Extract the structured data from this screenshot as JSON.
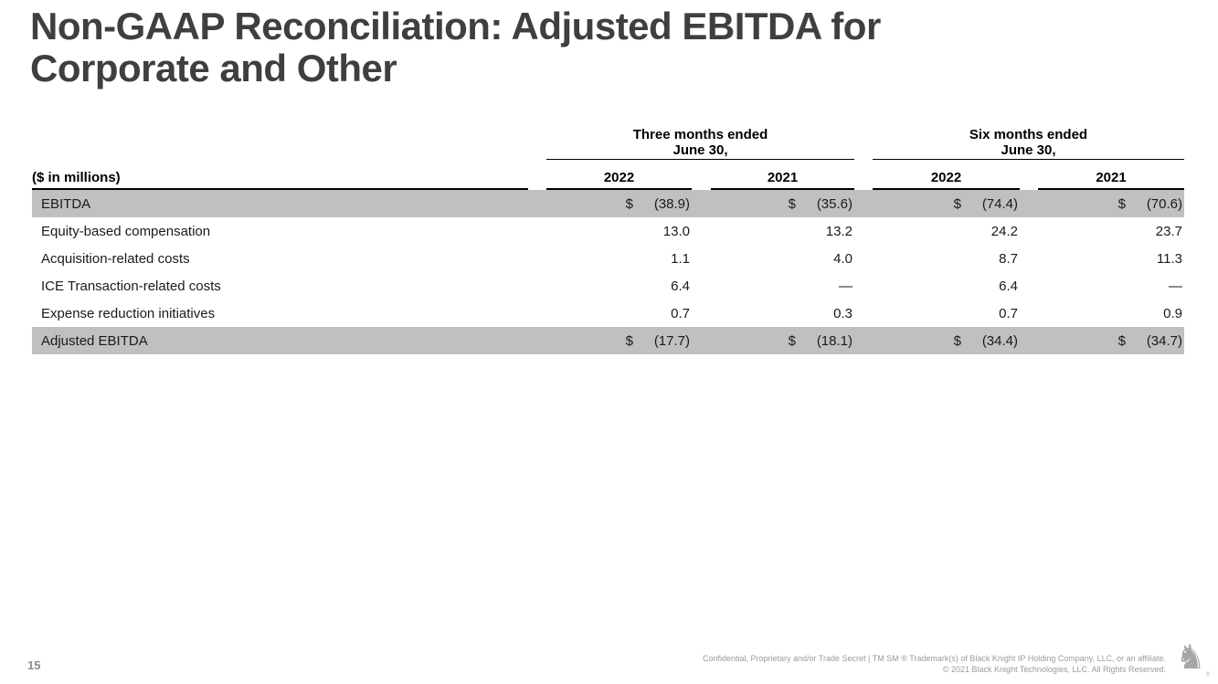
{
  "slide": {
    "title_line1": "Non-GAAP Reconciliation: Adjusted EBITDA for",
    "title_line2": "Corporate and Other",
    "page_number": "15"
  },
  "table": {
    "units_label": "($ in millions)",
    "currency_symbol": "$",
    "column_groups": [
      {
        "line1": "Three months ended",
        "line2": "June 30,"
      },
      {
        "line1": "Six months ended",
        "line2": "June 30,"
      }
    ],
    "year_headers": [
      "2022",
      "2021",
      "2022",
      "2021"
    ],
    "rows": [
      {
        "label": "EBITDA",
        "shaded": true,
        "currency": true,
        "values": [
          "(38.9)",
          "(35.6)",
          "(74.4)",
          "(70.6)"
        ]
      },
      {
        "label": "Equity-based compensation",
        "shaded": false,
        "currency": false,
        "values": [
          "13.0",
          "13.2",
          "24.2",
          "23.7"
        ]
      },
      {
        "label": "Acquisition-related costs",
        "shaded": false,
        "currency": false,
        "values": [
          "1.1",
          "4.0",
          "8.7",
          "11.3"
        ]
      },
      {
        "label": "ICE Transaction-related costs",
        "shaded": false,
        "currency": false,
        "values": [
          "6.4",
          "—",
          "6.4",
          "—"
        ]
      },
      {
        "label": "Expense reduction initiatives",
        "shaded": false,
        "currency": false,
        "values": [
          "0.7",
          "0.3",
          "0.7",
          "0.9"
        ]
      },
      {
        "label": "Adjusted EBITDA",
        "shaded": true,
        "currency": true,
        "values": [
          "(17.7)",
          "(18.1)",
          "(34.4)",
          "(34.7)"
        ]
      }
    ]
  },
  "footer": {
    "line1": "Confidential, Proprietary and/or Trade Secret | TM SM ® Trademark(s) of Black Knight IP Holding Company, LLC, or an affiliate.",
    "line2": "© 2021 Black Knight Technologies, LLC.  All Rights Reserved.",
    "logo_glyph": "♞",
    "logo_mark": "®"
  },
  "colors": {
    "title_text": "#3f3f3f",
    "shaded_row": "#c0c0c0",
    "rule": "#000000",
    "footer_text": "#9b9b9b"
  }
}
